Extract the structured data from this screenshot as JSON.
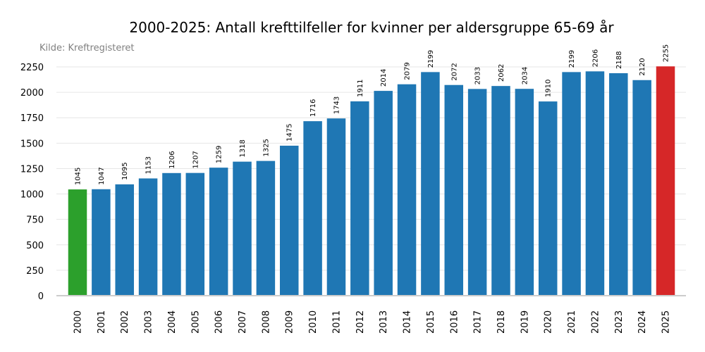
{
  "chart_data": {
    "type": "bar",
    "title": "2000-2025: Antall krefttilfeller for kvinner per aldersgruppe 65-69 år",
    "source": "Kilde: Kreftregisteret",
    "xlabel": "",
    "ylabel": "",
    "ylim": [
      0,
      2300
    ],
    "yticks": [
      0,
      250,
      500,
      750,
      1000,
      1250,
      1500,
      1750,
      2000,
      2250
    ],
    "grid": true,
    "categories": [
      "2000",
      "2001",
      "2002",
      "2003",
      "2004",
      "2005",
      "2006",
      "2007",
      "2008",
      "2009",
      "2010",
      "2011",
      "2012",
      "2013",
      "2014",
      "2015",
      "2016",
      "2017",
      "2018",
      "2019",
      "2020",
      "2021",
      "2022",
      "2023",
      "2024",
      "2025"
    ],
    "values": [
      1045,
      1047,
      1095,
      1153,
      1206,
      1207,
      1259,
      1318,
      1325,
      1475,
      1716,
      1743,
      1911,
      2014,
      2079,
      2199,
      2072,
      2033,
      2062,
      2034,
      1910,
      2199,
      2206,
      2188,
      2120,
      2255
    ],
    "colors": {
      "default": "#1f77b4",
      "first": "#2ca02c",
      "last": "#d62728"
    }
  }
}
